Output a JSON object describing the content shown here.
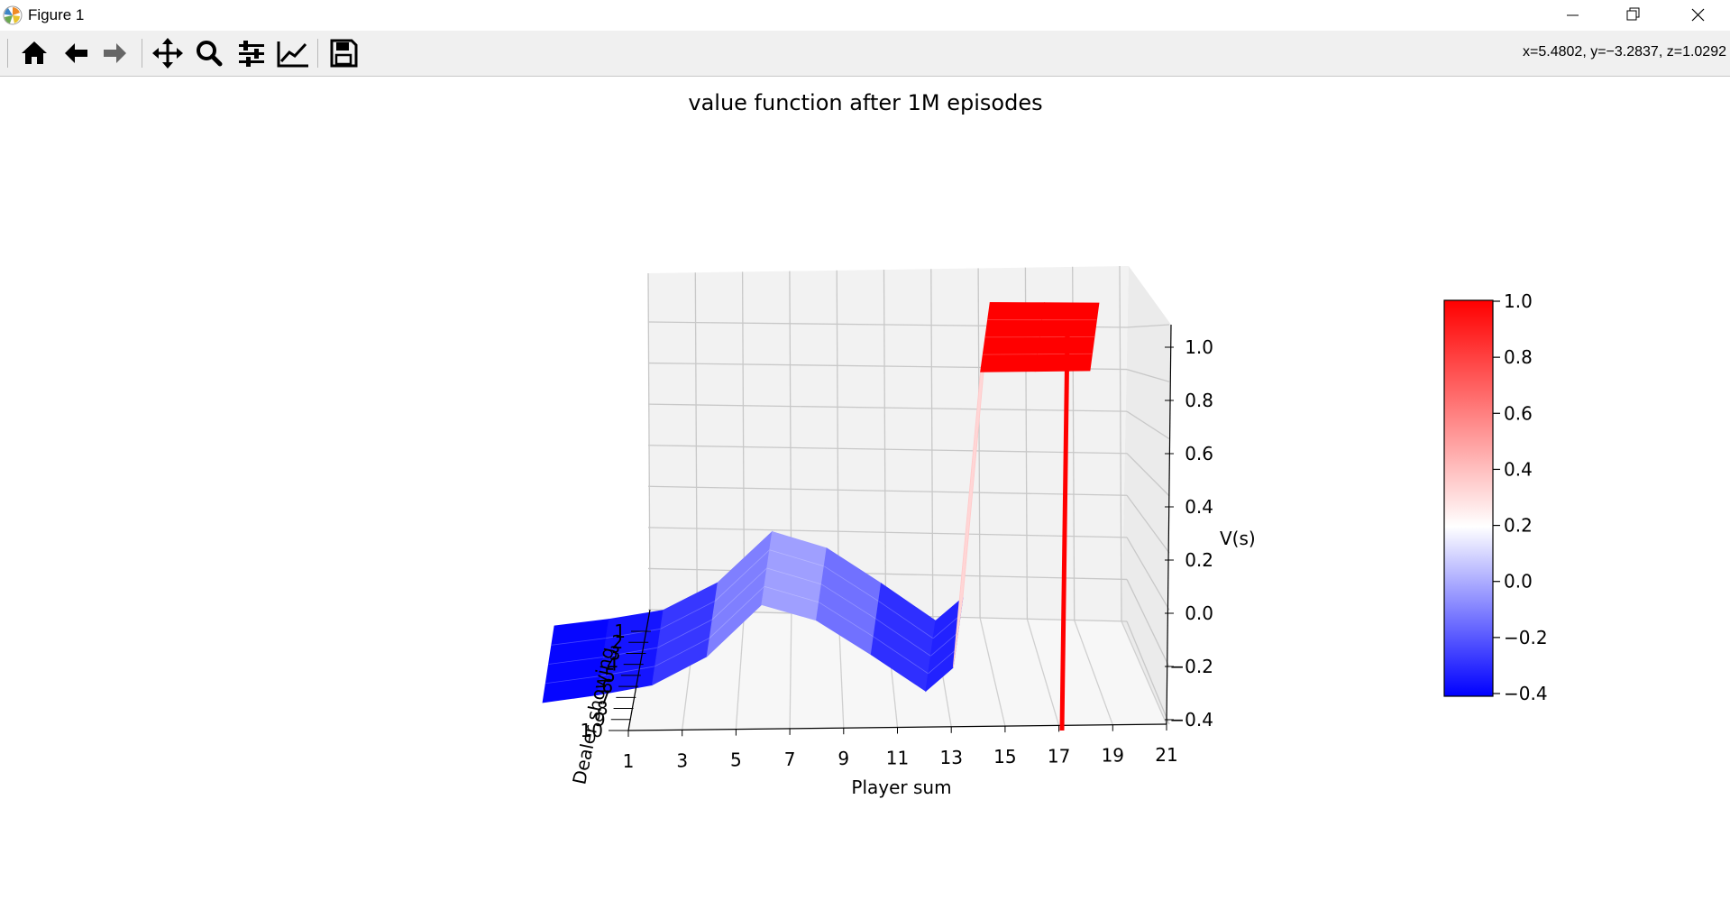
{
  "window": {
    "title": "Figure 1",
    "minimize_icon": "minimize-icon",
    "maximize_icon": "restore-icon",
    "close_icon": "close-icon"
  },
  "toolbar": {
    "buttons": [
      {
        "name": "home-button",
        "icon": "home-icon"
      },
      {
        "name": "back-button",
        "icon": "arrow-left-icon"
      },
      {
        "name": "forward-button",
        "icon": "arrow-right-icon"
      },
      {
        "name": "pan-button",
        "icon": "move-icon"
      },
      {
        "name": "zoom-button",
        "icon": "magnifier-icon"
      },
      {
        "name": "configure-subplots-button",
        "icon": "sliders-icon"
      },
      {
        "name": "edit-axis-button",
        "icon": "line-chart-icon"
      },
      {
        "name": "save-button",
        "icon": "floppy-disk-icon"
      }
    ],
    "coordinates": "x=5.4802, y=−3.2837, z=1.0292"
  },
  "chart_data": {
    "type": "surface",
    "title": "value function after 1M episodes",
    "xlabel": "Player sum",
    "ylabel": "Dealer showing",
    "zlabel": "V(s)",
    "x_ticks": [
      "1",
      "3",
      "5",
      "7",
      "9",
      "11",
      "13",
      "15",
      "17",
      "19",
      "21"
    ],
    "y_ticks": [
      "1",
      "2",
      "3",
      "4",
      "5",
      "6",
      "7",
      "8",
      "9",
      "10"
    ],
    "z_ticks": [
      "−0.4",
      "−0.2",
      "0.0",
      "0.2",
      "0.4",
      "0.6",
      "0.8",
      "1.0"
    ],
    "zlim": [
      -0.4,
      1.0
    ],
    "grid": true,
    "colormap": "bwr",
    "colors": {
      "low": "#0000ff",
      "mid": "#ffffff",
      "high": "#ff0000"
    },
    "surface_profile": {
      "player_sum": [
        1,
        3,
        5,
        7,
        9,
        11,
        13,
        15,
        16,
        17,
        19,
        21
      ],
      "value": [
        -0.4,
        -0.37,
        -0.33,
        -0.21,
        0.01,
        -0.06,
        -0.21,
        -0.37,
        -0.27,
        1.0,
        1.0,
        1.0
      ]
    },
    "colorbar": {
      "range": [
        -0.4,
        1.0
      ],
      "tick_labels": [
        "−0.4",
        "−0.2",
        "0.0",
        "0.2",
        "0.4",
        "0.6",
        "0.8",
        "1.0"
      ]
    }
  }
}
